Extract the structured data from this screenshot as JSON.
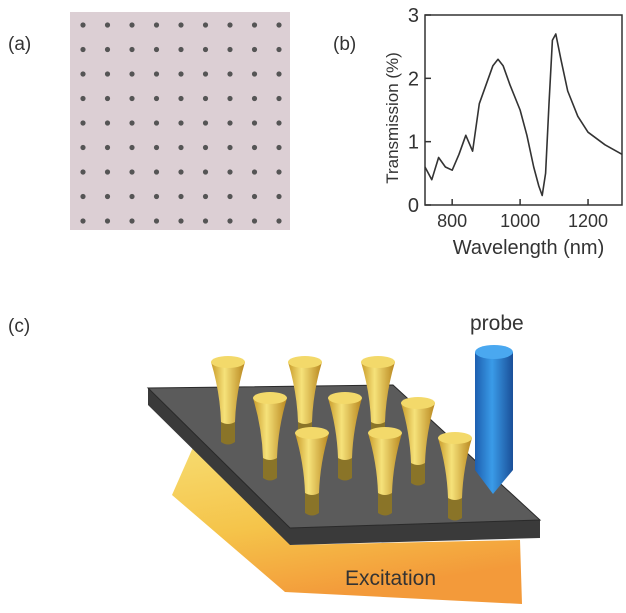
{
  "panel_labels": [
    "(a)",
    "(b)",
    "(c)"
  ],
  "chart_data": {
    "type": "line",
    "x_label": "Wavelength (nm)",
    "y_label": "Transmission (%)",
    "x": [
      720,
      740,
      760,
      780,
      800,
      820,
      840,
      860,
      880,
      900,
      920,
      935,
      950,
      970,
      1000,
      1020,
      1040,
      1055,
      1065,
      1075,
      1085,
      1095,
      1105,
      1120,
      1140,
      1170,
      1200,
      1250,
      1300
    ],
    "series": [
      {
        "color": "#333333",
        "values": [
          0.6,
          0.4,
          0.75,
          0.6,
          0.55,
          0.8,
          1.1,
          0.85,
          1.6,
          1.9,
          2.2,
          2.3,
          2.2,
          1.9,
          1.5,
          1.1,
          0.6,
          0.3,
          0.15,
          0.5,
          1.6,
          2.6,
          2.7,
          2.3,
          1.8,
          1.4,
          1.15,
          0.95,
          0.8
        ]
      }
    ],
    "xlim": [
      720,
      1300
    ],
    "xticks": [
      800,
      1000,
      1200
    ],
    "ylim": [
      0,
      3
    ],
    "yticks": [
      0,
      1,
      2,
      3
    ]
  },
  "diagram": {
    "probe_label": "probe",
    "excitation_label": "Excitation"
  }
}
